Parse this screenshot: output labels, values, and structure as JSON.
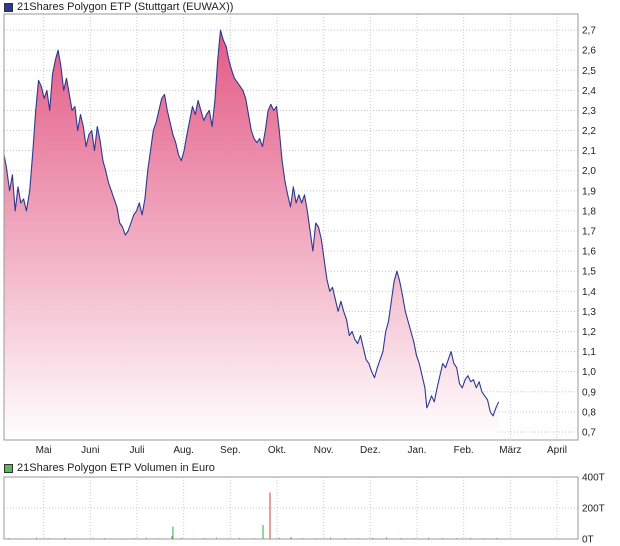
{
  "colors": {
    "price_line": "#2b3a8f",
    "area_top": "#e2517f",
    "area_bottom": "#ffffff",
    "grid": "#c8c8c8",
    "frame": "#9a9a9a",
    "volume_up": "#3aa63a",
    "volume_down": "#d23c3c",
    "volume_swatch": "#59b85c",
    "price_swatch": "#2b3a8f"
  },
  "chart_data": [
    {
      "type": "area",
      "legend": "21Shares Polygon ETP (Stuttgart (EUWAX))",
      "ylim": [
        0.66,
        2.78
      ],
      "y_ticks": [
        0.7,
        0.8,
        0.9,
        1.0,
        1.1,
        1.2,
        1.3,
        1.4,
        1.5,
        1.6,
        1.7,
        1.8,
        1.9,
        2.0,
        2.1,
        2.2,
        2.3,
        2.4,
        2.5,
        2.6,
        2.7
      ],
      "y_tick_labels": [
        "0,7",
        "0,8",
        "0,9",
        "1,0",
        "1,1",
        "1,2",
        "1,3",
        "1,4",
        "1,5",
        "1,6",
        "1,7",
        "1,8",
        "1,9",
        "2,0",
        "2,1",
        "2,2",
        "2,3",
        "2,4",
        "2,5",
        "2,6",
        "2,7"
      ],
      "x_range": [
        0,
        12.3
      ],
      "x_ticks": [
        0.85,
        1.85,
        2.85,
        3.85,
        4.85,
        5.85,
        6.85,
        7.85,
        8.85,
        9.85,
        10.85,
        11.85
      ],
      "x_tick_labels": [
        "Mai",
        "Juni",
        "Juli",
        "Aug.",
        "Sep.",
        "Okt.",
        "Nov.",
        "Dez.",
        "Jan.",
        "Feb.",
        "März",
        "April"
      ],
      "x_unit": "months from start of April",
      "grid": true,
      "points": [
        [
          0.0,
          2.08
        ],
        [
          0.05,
          2.02
        ],
        [
          0.12,
          1.9
        ],
        [
          0.18,
          1.98
        ],
        [
          0.24,
          1.8
        ],
        [
          0.3,
          1.92
        ],
        [
          0.36,
          1.84
        ],
        [
          0.42,
          1.86
        ],
        [
          0.48,
          1.8
        ],
        [
          0.55,
          1.9
        ],
        [
          0.62,
          2.1
        ],
        [
          0.68,
          2.3
        ],
        [
          0.74,
          2.45
        ],
        [
          0.8,
          2.42
        ],
        [
          0.86,
          2.36
        ],
        [
          0.92,
          2.4
        ],
        [
          0.98,
          2.3
        ],
        [
          1.04,
          2.48
        ],
        [
          1.1,
          2.55
        ],
        [
          1.16,
          2.6
        ],
        [
          1.22,
          2.52
        ],
        [
          1.28,
          2.4
        ],
        [
          1.34,
          2.46
        ],
        [
          1.4,
          2.38
        ],
        [
          1.46,
          2.3
        ],
        [
          1.52,
          2.32
        ],
        [
          1.58,
          2.2
        ],
        [
          1.64,
          2.28
        ],
        [
          1.7,
          2.22
        ],
        [
          1.76,
          2.12
        ],
        [
          1.82,
          2.18
        ],
        [
          1.88,
          2.2
        ],
        [
          1.94,
          2.1
        ],
        [
          2.0,
          2.22
        ],
        [
          2.06,
          2.15
        ],
        [
          2.12,
          2.05
        ],
        [
          2.18,
          2.0
        ],
        [
          2.24,
          1.94
        ],
        [
          2.3,
          1.9
        ],
        [
          2.36,
          1.86
        ],
        [
          2.42,
          1.82
        ],
        [
          2.48,
          1.74
        ],
        [
          2.54,
          1.72
        ],
        [
          2.6,
          1.68
        ],
        [
          2.66,
          1.7
        ],
        [
          2.72,
          1.74
        ],
        [
          2.78,
          1.78
        ],
        [
          2.84,
          1.8
        ],
        [
          2.9,
          1.84
        ],
        [
          2.96,
          1.78
        ],
        [
          3.02,
          1.86
        ],
        [
          3.08,
          2.0
        ],
        [
          3.14,
          2.1
        ],
        [
          3.2,
          2.2
        ],
        [
          3.26,
          2.24
        ],
        [
          3.32,
          2.3
        ],
        [
          3.38,
          2.36
        ],
        [
          3.44,
          2.38
        ],
        [
          3.5,
          2.3
        ],
        [
          3.56,
          2.24
        ],
        [
          3.62,
          2.18
        ],
        [
          3.68,
          2.14
        ],
        [
          3.74,
          2.08
        ],
        [
          3.8,
          2.05
        ],
        [
          3.86,
          2.1
        ],
        [
          3.92,
          2.18
        ],
        [
          3.98,
          2.25
        ],
        [
          4.04,
          2.32
        ],
        [
          4.1,
          2.28
        ],
        [
          4.16,
          2.35
        ],
        [
          4.22,
          2.3
        ],
        [
          4.28,
          2.25
        ],
        [
          4.34,
          2.28
        ],
        [
          4.4,
          2.3
        ],
        [
          4.46,
          2.22
        ],
        [
          4.52,
          2.35
        ],
        [
          4.58,
          2.55
        ],
        [
          4.64,
          2.7
        ],
        [
          4.7,
          2.65
        ],
        [
          4.76,
          2.62
        ],
        [
          4.82,
          2.55
        ],
        [
          4.88,
          2.5
        ],
        [
          4.94,
          2.46
        ],
        [
          5.0,
          2.44
        ],
        [
          5.06,
          2.42
        ],
        [
          5.12,
          2.4
        ],
        [
          5.18,
          2.36
        ],
        [
          5.24,
          2.28
        ],
        [
          5.3,
          2.2
        ],
        [
          5.36,
          2.16
        ],
        [
          5.42,
          2.14
        ],
        [
          5.48,
          2.16
        ],
        [
          5.54,
          2.12
        ],
        [
          5.6,
          2.2
        ],
        [
          5.66,
          2.3
        ],
        [
          5.72,
          2.33
        ],
        [
          5.78,
          2.3
        ],
        [
          5.84,
          2.32
        ],
        [
          5.9,
          2.2
        ],
        [
          5.96,
          2.05
        ],
        [
          6.02,
          1.95
        ],
        [
          6.08,
          1.88
        ],
        [
          6.14,
          1.82
        ],
        [
          6.2,
          1.92
        ],
        [
          6.26,
          1.84
        ],
        [
          6.32,
          1.88
        ],
        [
          6.38,
          1.84
        ],
        [
          6.44,
          1.88
        ],
        [
          6.5,
          1.8
        ],
        [
          6.56,
          1.7
        ],
        [
          6.62,
          1.6
        ],
        [
          6.68,
          1.74
        ],
        [
          6.74,
          1.72
        ],
        [
          6.8,
          1.66
        ],
        [
          6.86,
          1.56
        ],
        [
          6.92,
          1.46
        ],
        [
          6.98,
          1.4
        ],
        [
          7.04,
          1.42
        ],
        [
          7.1,
          1.36
        ],
        [
          7.16,
          1.3
        ],
        [
          7.22,
          1.35
        ],
        [
          7.28,
          1.3
        ],
        [
          7.34,
          1.26
        ],
        [
          7.4,
          1.18
        ],
        [
          7.46,
          1.2
        ],
        [
          7.52,
          1.16
        ],
        [
          7.58,
          1.14
        ],
        [
          7.64,
          1.18
        ],
        [
          7.7,
          1.12
        ],
        [
          7.76,
          1.06
        ],
        [
          7.82,
          1.04
        ],
        [
          7.88,
          1.0
        ],
        [
          7.94,
          0.97
        ],
        [
          8.0,
          1.02
        ],
        [
          8.06,
          1.06
        ],
        [
          8.12,
          1.1
        ],
        [
          8.18,
          1.2
        ],
        [
          8.24,
          1.25
        ],
        [
          8.3,
          1.35
        ],
        [
          8.36,
          1.45
        ],
        [
          8.42,
          1.5
        ],
        [
          8.48,
          1.45
        ],
        [
          8.54,
          1.38
        ],
        [
          8.6,
          1.3
        ],
        [
          8.66,
          1.25
        ],
        [
          8.72,
          1.2
        ],
        [
          8.78,
          1.15
        ],
        [
          8.84,
          1.08
        ],
        [
          8.9,
          1.04
        ],
        [
          8.96,
          0.98
        ],
        [
          9.02,
          0.92
        ],
        [
          9.06,
          0.82
        ],
        [
          9.1,
          0.84
        ],
        [
          9.16,
          0.88
        ],
        [
          9.22,
          0.85
        ],
        [
          9.28,
          0.92
        ],
        [
          9.34,
          0.98
        ],
        [
          9.4,
          1.04
        ],
        [
          9.46,
          1.02
        ],
        [
          9.52,
          1.06
        ],
        [
          9.58,
          1.1
        ],
        [
          9.64,
          1.04
        ],
        [
          9.7,
          1.02
        ],
        [
          9.76,
          0.94
        ],
        [
          9.82,
          0.92
        ],
        [
          9.88,
          0.96
        ],
        [
          9.94,
          0.98
        ],
        [
          10.0,
          0.95
        ],
        [
          10.06,
          0.96
        ],
        [
          10.12,
          0.92
        ],
        [
          10.18,
          0.95
        ],
        [
          10.24,
          0.9
        ],
        [
          10.3,
          0.88
        ],
        [
          10.36,
          0.86
        ],
        [
          10.42,
          0.8
        ],
        [
          10.48,
          0.78
        ],
        [
          10.54,
          0.82
        ],
        [
          10.6,
          0.85
        ]
      ]
    },
    {
      "type": "bar",
      "legend": "21Shares Polygon ETP Volumen in Euro",
      "ylim": [
        0,
        400
      ],
      "y_ticks": [
        0,
        200,
        400
      ],
      "y_tick_labels": [
        "0T",
        "200T",
        "400T"
      ],
      "unit": "T",
      "bars": [
        [
          0.1,
          6,
          "up"
        ],
        [
          0.4,
          4,
          "up"
        ],
        [
          0.7,
          8,
          "down"
        ],
        [
          0.95,
          5,
          "up"
        ],
        [
          1.3,
          7,
          "up"
        ],
        [
          1.6,
          4,
          "down"
        ],
        [
          1.9,
          5,
          "up"
        ],
        [
          2.15,
          6,
          "up"
        ],
        [
          2.5,
          4,
          "down"
        ],
        [
          2.8,
          5,
          "up"
        ],
        [
          3.05,
          8,
          "up"
        ],
        [
          3.3,
          5,
          "down"
        ],
        [
          3.6,
          18,
          "up"
        ],
        [
          3.62,
          80,
          "up"
        ],
        [
          3.8,
          6,
          "up"
        ],
        [
          4.05,
          4,
          "down"
        ],
        [
          4.3,
          6,
          "up"
        ],
        [
          4.55,
          9,
          "up"
        ],
        [
          4.8,
          5,
          "down"
        ],
        [
          5.05,
          7,
          "up"
        ],
        [
          5.35,
          5,
          "up"
        ],
        [
          5.55,
          90,
          "up"
        ],
        [
          5.7,
          300,
          "down"
        ],
        [
          5.9,
          8,
          "up"
        ],
        [
          6.15,
          12,
          "down"
        ],
        [
          6.4,
          6,
          "up"
        ],
        [
          6.7,
          5,
          "up"
        ],
        [
          7.0,
          8,
          "down"
        ],
        [
          7.3,
          6,
          "up"
        ],
        [
          7.6,
          5,
          "up"
        ],
        [
          7.9,
          7,
          "down"
        ],
        [
          8.2,
          10,
          "up"
        ],
        [
          8.5,
          6,
          "up"
        ],
        [
          8.8,
          5,
          "down"
        ],
        [
          9.1,
          8,
          "up"
        ],
        [
          9.4,
          6,
          "up"
        ],
        [
          9.7,
          5,
          "down"
        ],
        [
          10.0,
          7,
          "up"
        ],
        [
          10.3,
          5,
          "up"
        ],
        [
          10.55,
          6,
          "down"
        ]
      ]
    }
  ]
}
